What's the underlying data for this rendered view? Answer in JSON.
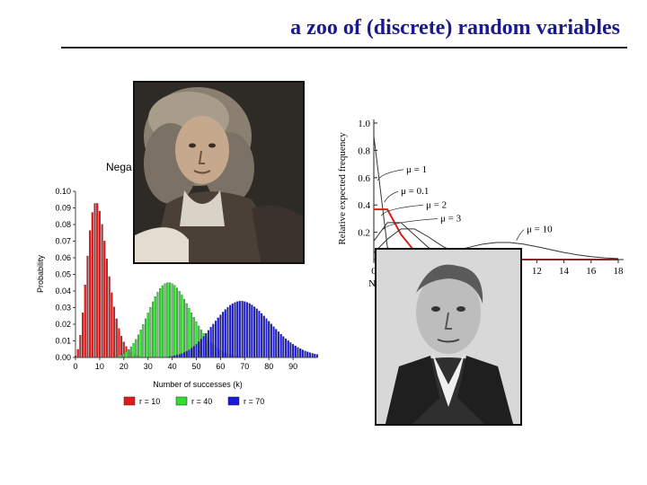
{
  "slide": {
    "title": "a zoo of (discrete) random variables"
  },
  "colors": {
    "title": "#1a1a8c",
    "red": "#e31a1c",
    "green": "#33dd33",
    "blue": "#1a1adf"
  },
  "chart_data": [
    {
      "type": "bar",
      "title_partial": "Nega",
      "xlabel": "Number of successes (k)",
      "ylabel": "Probability",
      "xlim": [
        0,
        100
      ],
      "ylim": [
        0,
        0.1
      ],
      "x_ticks": [
        "0",
        "10",
        "20",
        "30",
        "40",
        "50",
        "60",
        "70",
        "80",
        "90"
      ],
      "y_ticks": [
        "0.00",
        "0.01",
        "0.02",
        "0.03",
        "0.04",
        "0.05",
        "0.06",
        "0.07",
        "0.08",
        "0.09",
        "0.10"
      ],
      "legend_position": "bottom",
      "series": [
        {
          "name": "r = 10",
          "color": "#e31a1c",
          "r": 10
        },
        {
          "name": "r = 40",
          "color": "#33dd33",
          "r": 40
        },
        {
          "name": "r = 70",
          "color": "#1a1adf",
          "r": 70
        }
      ]
    },
    {
      "type": "line",
      "ylabel": "Relative expected frequency",
      "y_ticks": [
        "1.0",
        "0.8",
        "0.6",
        "0.4",
        "0.2"
      ],
      "x_ticks_visible": [
        "0",
        "12",
        "14",
        "16",
        "18"
      ],
      "xlim": [
        0,
        18
      ],
      "ylim": [
        0,
        1.0
      ],
      "annotations": [
        "μ = 0.1",
        "μ = 1",
        "μ = 2",
        "μ = 3",
        "μ = 10"
      ],
      "x_label_partial": "N",
      "series": [
        {
          "name": "μ = 0.1",
          "mu": 0.1,
          "color": "#333333"
        },
        {
          "name": "μ = 1",
          "mu": 1,
          "color": "#e31a1c"
        },
        {
          "name": "μ = 2",
          "mu": 2,
          "color": "#333333"
        },
        {
          "name": "μ = 3",
          "mu": 3,
          "color": "#333333"
        },
        {
          "name": "μ = 10",
          "mu": 10,
          "color": "#333333"
        }
      ]
    }
  ]
}
